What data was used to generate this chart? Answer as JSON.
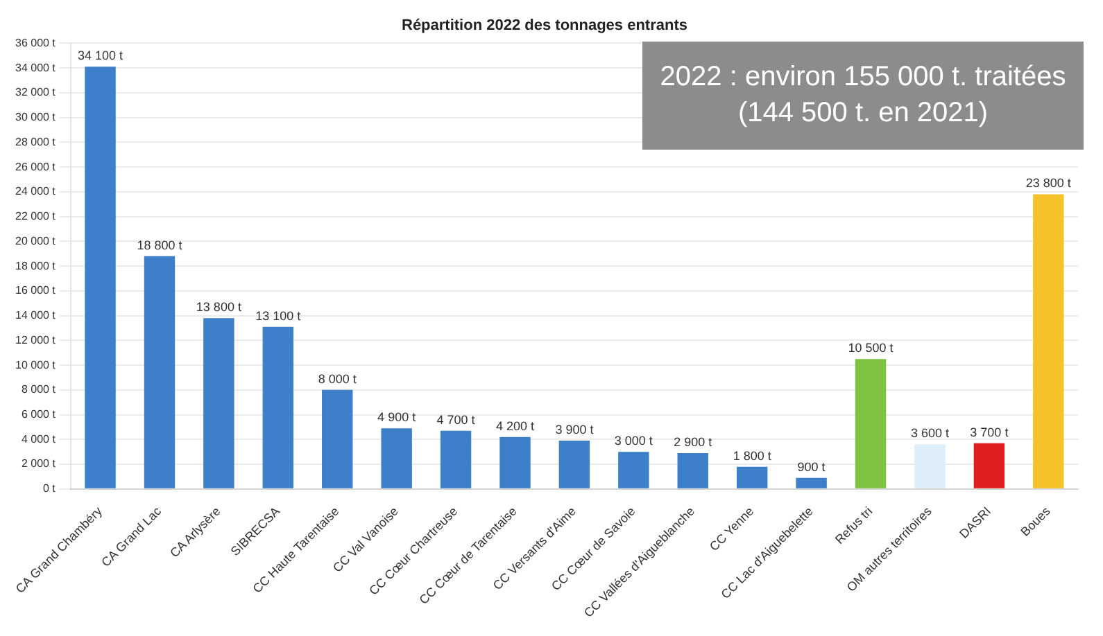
{
  "chart_data": {
    "type": "bar",
    "title": "Répartition 2022 des tonnages entrants",
    "categories": [
      "CA Grand Chambéry",
      "CA Grand Lac",
      "CA Arlysère",
      "SIBRECSA",
      "CC Haute Tarentaise",
      "CC Val Vanoise",
      "CC Cœur Chartreuse",
      "CC Cœur de Tarentaise",
      "CC Versants d'Aime",
      "CC Cœur de Savoie",
      "CC Vallées d'Aigueblanche",
      "CC Yenne",
      "CC Lac d'Aiguebelette",
      "Refus tri",
      "OM autres territoires",
      "DASRI",
      "Boues"
    ],
    "values": [
      34100,
      18800,
      13800,
      13100,
      8000,
      4900,
      4700,
      4200,
      3900,
      3000,
      2900,
      1800,
      900,
      10500,
      3600,
      3700,
      23800
    ],
    "value_labels": [
      "34 100 t",
      "18 800 t",
      "13 800 t",
      "13 100 t",
      "8 000 t",
      "4 900 t",
      "4 700 t",
      "4 200 t",
      "3 900 t",
      "3 000 t",
      "2 900 t",
      "1 800 t",
      "900 t",
      "10 500 t",
      "3 600 t",
      "3 700 t",
      "23 800 t"
    ],
    "colors": [
      "#3d7fc9",
      "#3d7fc9",
      "#3d7fc9",
      "#3d7fc9",
      "#3d7fc9",
      "#3d7fc9",
      "#3d7fc9",
      "#3d7fc9",
      "#3d7fc9",
      "#3d7fc9",
      "#3d7fc9",
      "#3d7fc9",
      "#3d7fc9",
      "#7dc241",
      "#ddeef8",
      "#e02020",
      "#f5c22a"
    ],
    "ylim": [
      0,
      36000
    ],
    "yticks": [
      {
        "value": 0,
        "label": "0 t"
      },
      {
        "value": 2000,
        "label": "2 000 t"
      },
      {
        "value": 4000,
        "label": "4 000 t"
      },
      {
        "value": 6000,
        "label": "6 000 t"
      },
      {
        "value": 8000,
        "label": "8 000 t"
      },
      {
        "value": 10000,
        "label": "10 000 t"
      },
      {
        "value": 12000,
        "label": "12 000 t"
      },
      {
        "value": 14000,
        "label": "14 000 t"
      },
      {
        "value": 16000,
        "label": "16 000 t"
      },
      {
        "value": 18000,
        "label": "18 000 t"
      },
      {
        "value": 20000,
        "label": "20 000 t"
      },
      {
        "value": 22000,
        "label": "22 000 t"
      },
      {
        "value": 24000,
        "label": "24 000 t"
      },
      {
        "value": 26000,
        "label": "26 000 t"
      },
      {
        "value": 28000,
        "label": "28 000 t"
      },
      {
        "value": 30000,
        "label": "30 000 t"
      },
      {
        "value": 32000,
        "label": "32 000 t"
      },
      {
        "value": 34000,
        "label": "34 000 t"
      },
      {
        "value": 36000,
        "label": "36 000 t"
      }
    ],
    "annotations": [
      "2022 : environ 155 000 t. traitées (144 500 t. en 2021)"
    ],
    "grid": "y",
    "legend": false
  }
}
